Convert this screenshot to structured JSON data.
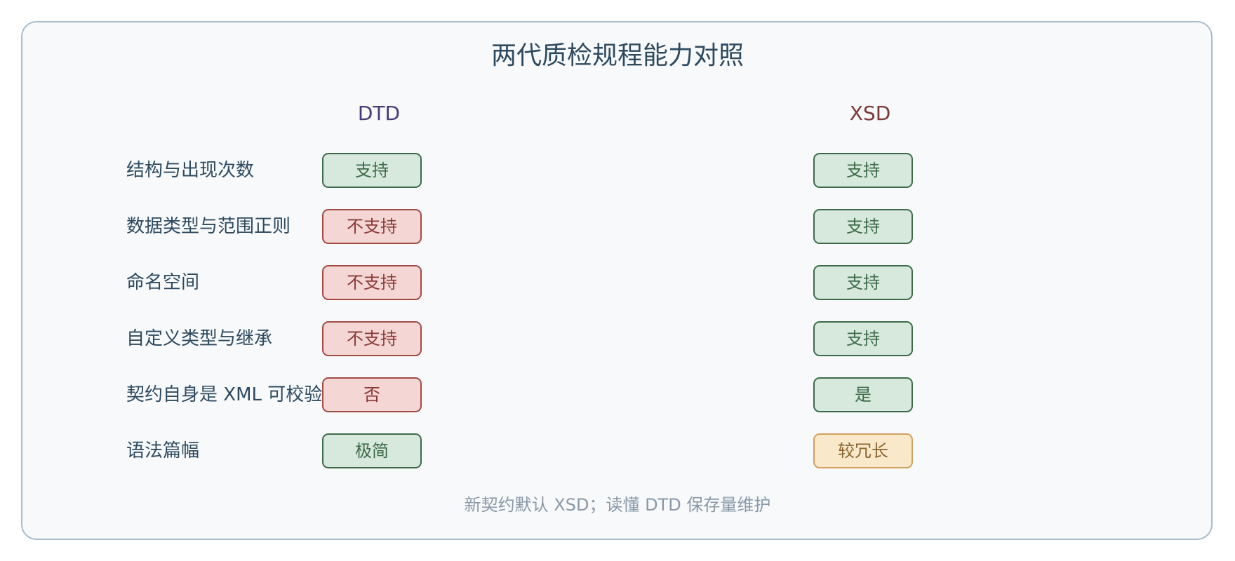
{
  "title": "两代质检规程能力对照",
  "columns": {
    "dtd": "DTD",
    "xsd": "XSD"
  },
  "rows": [
    {
      "label": "结构与出现次数",
      "dtd": "支持",
      "xsd": "支持"
    },
    {
      "label": "数据类型与范围正则",
      "dtd": "不支持",
      "xsd": "支持"
    },
    {
      "label": "命名空间",
      "dtd": "不支持",
      "xsd": "支持"
    },
    {
      "label": "自定义类型与继承",
      "dtd": "不支持",
      "xsd": "支持"
    },
    {
      "label": "契约自身是 XML 可校验",
      "dtd": "否",
      "xsd": "是"
    },
    {
      "label": "语法篇幅",
      "dtd": "极简",
      "xsd": "较冗长"
    }
  ],
  "footer": "新契约默认 XSD；读懂 DTD 保存量维护",
  "colors": {
    "panel_bg": "#f7f9fb",
    "panel_border": "#a9bccb",
    "title": "#2e4a5f",
    "dtd_heading": "#4a3a78",
    "xsd_heading": "#7a3a36",
    "positive": "#3d6b4a",
    "negative": "#a24a44",
    "caution": "#d2a05f"
  }
}
